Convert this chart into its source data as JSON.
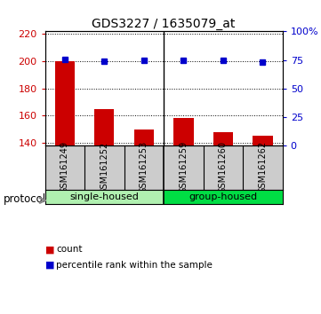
{
  "title": "GDS3227 / 1635079_at",
  "samples": [
    "GSM161249",
    "GSM161252",
    "GSM161253",
    "GSM161259",
    "GSM161260",
    "GSM161262"
  ],
  "bar_values": [
    200,
    165,
    150,
    158,
    148,
    145
  ],
  "percentile_values": [
    75.5,
    74.0,
    75.0,
    75.0,
    75.0,
    73.0
  ],
  "ylim_left": [
    138,
    222
  ],
  "ylim_right": [
    0,
    100
  ],
  "yticks_left": [
    140,
    160,
    180,
    200,
    220
  ],
  "yticks_right": [
    0,
    25,
    50,
    75,
    100
  ],
  "ytick_labels_right": [
    "0",
    "25",
    "50",
    "75",
    "100%"
  ],
  "bar_color": "#cc0000",
  "dot_color": "#0000cc",
  "groups": [
    {
      "label": "single-housed",
      "color": "#90ee90"
    },
    {
      "label": "group-housed",
      "color": "#00dd44"
    }
  ],
  "protocol_label": "protocol",
  "legend_items": [
    {
      "label": "count",
      "color": "#cc0000"
    },
    {
      "label": "percentile rank within the sample",
      "color": "#0000cc"
    }
  ],
  "xlabel_color": "#cc0000",
  "ylabel_right_color": "#0000cc",
  "label_box_color": "#cccccc"
}
